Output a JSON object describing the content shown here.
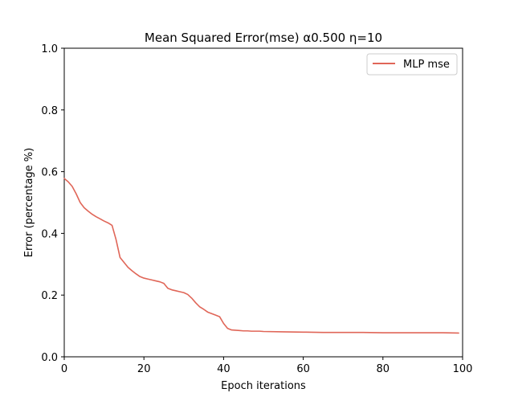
{
  "chart_data": {
    "type": "line",
    "title": "Mean Squared Error(mse) α0.500 η=10",
    "xlabel": "Epoch iterations",
    "ylabel": "Error (percentage %)",
    "xlim": [
      0,
      100
    ],
    "ylim": [
      0.0,
      1.0
    ],
    "xticks": [
      0,
      20,
      40,
      60,
      80,
      100
    ],
    "yticks": [
      0.0,
      0.2,
      0.4,
      0.6,
      0.8,
      1.0
    ],
    "xtick_labels": [
      "0",
      "20",
      "40",
      "60",
      "80",
      "100"
    ],
    "ytick_labels": [
      "0.0",
      "0.2",
      "0.4",
      "0.6",
      "0.8",
      "1.0"
    ],
    "grid": false,
    "legend_position": "top-right",
    "series": [
      {
        "name": "MLP mse",
        "color": "#e06658",
        "x": [
          0,
          1,
          2,
          3,
          4,
          5,
          6,
          7,
          8,
          9,
          10,
          11,
          12,
          13,
          14,
          15,
          16,
          17,
          18,
          19,
          20,
          21,
          22,
          23,
          24,
          25,
          26,
          27,
          28,
          29,
          30,
          31,
          32,
          33,
          34,
          35,
          36,
          37,
          38,
          39,
          40,
          41,
          42,
          43,
          44,
          45,
          46,
          47,
          48,
          49,
          50,
          55,
          60,
          65,
          70,
          75,
          80,
          85,
          90,
          95,
          99
        ],
        "y": [
          0.578,
          0.567,
          0.552,
          0.528,
          0.5,
          0.483,
          0.472,
          0.462,
          0.454,
          0.447,
          0.44,
          0.434,
          0.426,
          0.38,
          0.322,
          0.306,
          0.29,
          0.279,
          0.269,
          0.26,
          0.255,
          0.252,
          0.249,
          0.246,
          0.243,
          0.238,
          0.222,
          0.217,
          0.214,
          0.211,
          0.208,
          0.202,
          0.19,
          0.175,
          0.162,
          0.154,
          0.145,
          0.14,
          0.135,
          0.13,
          0.108,
          0.092,
          0.087,
          0.086,
          0.085,
          0.084,
          0.084,
          0.083,
          0.083,
          0.083,
          0.082,
          0.081,
          0.08,
          0.079,
          0.079,
          0.079,
          0.078,
          0.078,
          0.078,
          0.078,
          0.077
        ]
      }
    ]
  }
}
